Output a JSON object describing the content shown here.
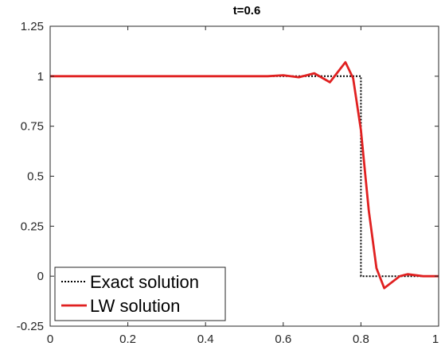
{
  "chart_data": {
    "type": "line",
    "title": "t=0.6",
    "xlabel": "",
    "ylabel": "",
    "xlim": [
      0,
      1
    ],
    "ylim": [
      -0.25,
      1.25
    ],
    "xticks": [
      0,
      0.2,
      0.4,
      0.6,
      0.8,
      1
    ],
    "xtick_labels": [
      "0",
      "0.2",
      "0.4",
      "0.6",
      "0.8",
      "1"
    ],
    "yticks": [
      -0.25,
      0,
      0.25,
      0.5,
      0.75,
      1,
      1.25
    ],
    "ytick_labels": [
      "-0.25",
      "0",
      "0.25",
      "0.5",
      "0.75",
      "1",
      "1.25"
    ],
    "grid": false,
    "legend_position": "bottom-left",
    "series": [
      {
        "name": "Exact solution",
        "color": "#000000",
        "style": "dotted",
        "x": [
          0,
          0.8,
          0.8,
          1
        ],
        "y": [
          1,
          1,
          0,
          0
        ]
      },
      {
        "name": "LW solution",
        "color": "#e02020",
        "style": "solid",
        "x": [
          0,
          0.44,
          0.48,
          0.52,
          0.56,
          0.6,
          0.64,
          0.68,
          0.72,
          0.76,
          0.78,
          0.8,
          0.82,
          0.84,
          0.86,
          0.88,
          0.9,
          0.92,
          0.96,
          1
        ],
        "y": [
          1,
          1,
          1,
          1,
          1,
          1.005,
          0.995,
          1.015,
          0.97,
          1.07,
          0.99,
          0.73,
          0.33,
          0.04,
          -0.06,
          -0.03,
          0.0,
          0.01,
          0,
          0
        ]
      }
    ]
  }
}
